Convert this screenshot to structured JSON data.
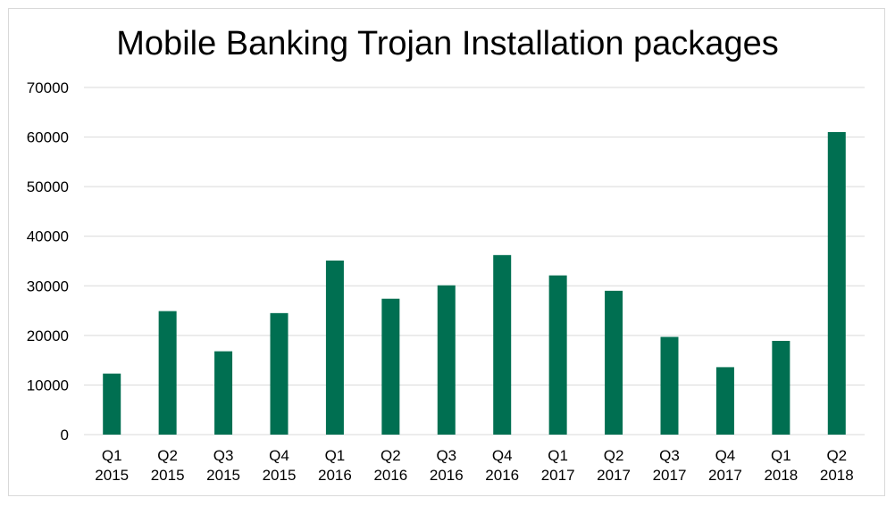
{
  "chart_data": {
    "type": "bar",
    "title": "Mobile Banking Trojan Installation packages",
    "xlabel": "",
    "ylabel": "",
    "ylim": [
      0,
      70000
    ],
    "yticks": [
      "0",
      "10000",
      "20000",
      "30000",
      "40000",
      "50000",
      "60000",
      "70000"
    ],
    "grid": true,
    "legend": "none",
    "categories": [
      [
        "Q1",
        "2015"
      ],
      [
        "Q2",
        "2015"
      ],
      [
        "Q3",
        "2015"
      ],
      [
        "Q4",
        "2015"
      ],
      [
        "Q1",
        "2016"
      ],
      [
        "Q2",
        "2016"
      ],
      [
        "Q3",
        "2016"
      ],
      [
        "Q4",
        "2016"
      ],
      [
        "Q1",
        "2017"
      ],
      [
        "Q2",
        "2017"
      ],
      [
        "Q3",
        "2017"
      ],
      [
        "Q4",
        "2017"
      ],
      [
        "Q1",
        "2018"
      ],
      [
        "Q2",
        "2018"
      ]
    ],
    "series": [
      {
        "name": "Installation packages",
        "color": "#006f51",
        "values": [
          12300,
          24900,
          16800,
          24500,
          35100,
          27400,
          30100,
          36200,
          32100,
          29000,
          19700,
          13600,
          18900,
          61000
        ]
      }
    ]
  }
}
